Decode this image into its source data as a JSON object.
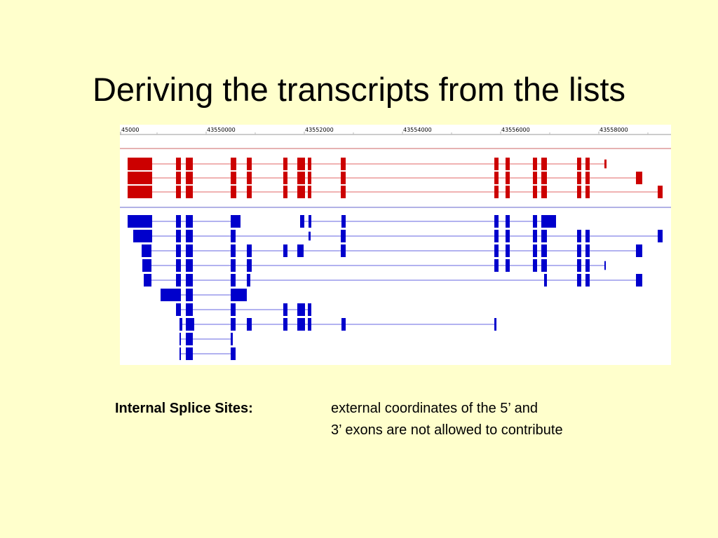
{
  "slide": {
    "title": "Deriving the transcripts from the lists",
    "figure": {
      "ruler_labels": [
        "45000",
        "43550000",
        "43552000",
        "43554000",
        "43556000",
        "43558000"
      ]
    },
    "note": {
      "label": "Internal Splice Sites:",
      "lines": [
        "external coordinates of the 5’ and",
        "3’ exons are not allowed to contribute"
      ]
    }
  }
}
